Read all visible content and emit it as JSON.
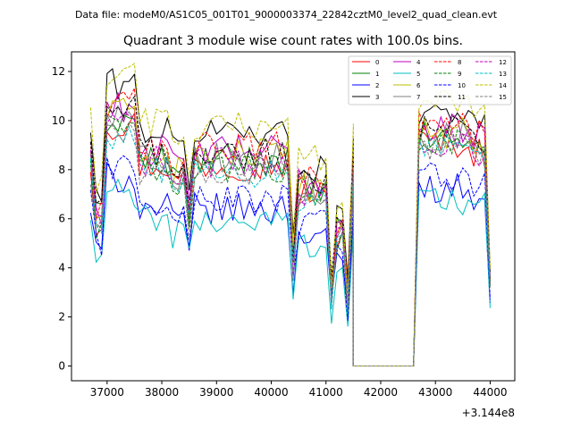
{
  "figure": {
    "suptitle": "Data file: modeM0/AS1C05_001T01_9000003374_22842cztM0_level2_quad_clean.evt",
    "offset_label": "+3.144e8"
  },
  "chart_data": {
    "type": "line",
    "title": "Quadrant 3 module wise count rates with 100.0s bins.",
    "xlabel": "",
    "ylabel": "",
    "x_offset": 314400000,
    "xlim": [
      36350,
      44450
    ],
    "ylim": [
      -0.6,
      12.8
    ],
    "xticks": [
      37000,
      38000,
      39000,
      40000,
      41000,
      42000,
      43000,
      44000
    ],
    "xtick_labels": [
      "37000",
      "38000",
      "39000",
      "40000",
      "41000",
      "42000",
      "43000",
      "44000"
    ],
    "yticks": [
      0,
      2,
      4,
      6,
      8,
      10,
      12
    ],
    "ytick_labels": [
      "0",
      "2",
      "4",
      "6",
      "8",
      "10",
      "12"
    ],
    "grid": false,
    "legend_position": "top-right",
    "segments": [
      {
        "x_start": 36700,
        "x_end": 41500
      },
      {
        "x_start": 41500,
        "x_end": 42600
      },
      {
        "x_start": 42600,
        "x_end": 44000
      }
    ],
    "series": [
      {
        "name": "0",
        "color": "#ff0000",
        "dash": "solid",
        "base": 8.2
      },
      {
        "name": "1",
        "color": "#008000",
        "dash": "solid",
        "base": 8.4
      },
      {
        "name": "2",
        "color": "#0000ff",
        "dash": "solid",
        "base": 6.4
      },
      {
        "name": "3",
        "color": "#000000",
        "dash": "solid",
        "base": 9.6
      },
      {
        "name": "4",
        "color": "#bf00bf",
        "dash": "solid",
        "base": 8.8
      },
      {
        "name": "5",
        "color": "#00bfbf",
        "dash": "solid",
        "base": 5.9
      },
      {
        "name": "6",
        "color": "#bfbf00",
        "dash": "solid",
        "base": 8.6
      },
      {
        "name": "7",
        "color": "#808080",
        "dash": "solid",
        "base": 8.5
      },
      {
        "name": "8",
        "color": "#ff0000",
        "dash": "dashed",
        "base": 8.9
      },
      {
        "name": "9",
        "color": "#008000",
        "dash": "dashed",
        "base": 8.1
      },
      {
        "name": "10",
        "color": "#0000ff",
        "dash": "dashed",
        "base": 6.8
      },
      {
        "name": "11",
        "color": "#000000",
        "dash": "dashed",
        "base": 8.7
      },
      {
        "name": "12",
        "color": "#bf00bf",
        "dash": "dashed",
        "base": 8.3
      },
      {
        "name": "13",
        "color": "#00bfbf",
        "dash": "dashed",
        "base": 7.9
      },
      {
        "name": "14",
        "color": "#bfbf00",
        "dash": "dashed",
        "base": 9.9
      },
      {
        "name": "15",
        "color": "#808080",
        "dash": "dashed",
        "base": 8.0
      }
    ]
  }
}
